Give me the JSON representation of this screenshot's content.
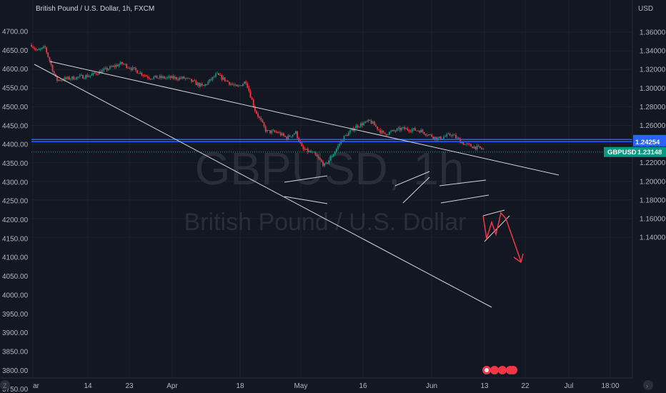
{
  "chart_data": {
    "type": "line",
    "title": "British Pound / U.S. Dollar, 1h, FXCM",
    "watermark": {
      "symbol": "GBPUSD, 1h",
      "name": "British Pound / U.S. Dollar"
    },
    "left_axis": {
      "ticks": [
        "4700.00",
        "4650.00",
        "4600.00",
        "4550.00",
        "4500.00",
        "4450.00",
        "4400.00",
        "4350.00",
        "4300.00",
        "4250.00",
        "4200.00",
        "4150.00",
        "4100.00",
        "4050.00",
        "4000.00",
        "3950.00",
        "3900.00",
        "3850.00",
        "3800.00",
        "3750.00"
      ],
      "range": [
        3735,
        4715
      ]
    },
    "right_axis": {
      "unit": "USD",
      "ticks": [
        "1.36000",
        "1.34000",
        "1.32000",
        "1.30000",
        "1.28000",
        "1.26000",
        "1.24000",
        "1.22000",
        "1.20000",
        "1.18000",
        "1.16000",
        "1.14000"
      ],
      "range": [
        1.1305,
        1.3745
      ]
    },
    "x_axis": {
      "labels": [
        "ar",
        "14",
        "23",
        "Apr",
        "18",
        "May",
        "16",
        "Jun",
        "13",
        "22",
        "Jul",
        "18:00"
      ]
    },
    "anchors": [
      {
        "t": 0,
        "p": 1.3465
      },
      {
        "t": 0.012,
        "p": 1.3395
      },
      {
        "t": 0.03,
        "p": 1.3435
      },
      {
        "t": 0.055,
        "p": 1.3085
      },
      {
        "t": 0.13,
        "p": 1.3135
      },
      {
        "t": 0.2,
        "p": 1.3265
      },
      {
        "t": 0.26,
        "p": 1.3115
      },
      {
        "t": 0.34,
        "p": 1.3105
      },
      {
        "t": 0.38,
        "p": 1.3015
      },
      {
        "t": 0.41,
        "p": 1.3145
      },
      {
        "t": 0.455,
        "p": 1.3005
      },
      {
        "t": 0.475,
        "p": 1.3075
      },
      {
        "t": 0.495,
        "p": 1.2765
      },
      {
        "t": 0.52,
        "p": 1.2535
      },
      {
        "t": 0.545,
        "p": 1.2525
      },
      {
        "t": 0.565,
        "p": 1.2465
      },
      {
        "t": 0.585,
        "p": 1.2525
      },
      {
        "t": 0.6,
        "p": 1.2345
      },
      {
        "t": 0.625,
        "p": 1.2295
      },
      {
        "t": 0.65,
        "p": 1.2165
      },
      {
        "t": 0.67,
        "p": 1.2305
      },
      {
        "t": 0.69,
        "p": 1.2465
      },
      {
        "t": 0.72,
        "p": 1.2595
      },
      {
        "t": 0.75,
        "p": 1.2645
      },
      {
        "t": 0.78,
        "p": 1.2505
      },
      {
        "t": 0.82,
        "p": 1.2565
      },
      {
        "t": 0.86,
        "p": 1.2545
      },
      {
        "t": 0.9,
        "p": 1.2455
      },
      {
        "t": 0.93,
        "p": 1.2505
      },
      {
        "t": 0.96,
        "p": 1.2395
      },
      {
        "t": 1,
        "p": 1.2345
      }
    ],
    "horizontal_levels": [
      {
        "value": 1.24482,
        "label": "1.24482",
        "color": "#2962ff"
      },
      {
        "value": 1.24254,
        "label": "1.24254",
        "color": "#2962ff"
      }
    ],
    "last_price": {
      "value": 1.23148,
      "symbol": "GBPUSD",
      "label": "1.23148",
      "color": "#089981"
    },
    "colors": {
      "up": "#089981",
      "down": "#f23645",
      "line": "#d1d4dc",
      "projection": "#f23645",
      "grid": "#1e222d"
    }
  }
}
